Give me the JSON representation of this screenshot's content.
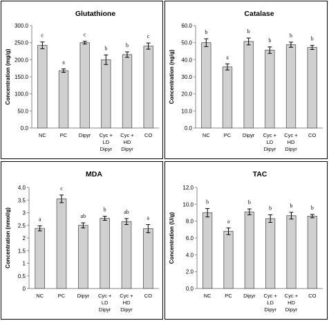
{
  "chart_data": [
    {
      "type": "bar",
      "title": "Glutathione",
      "ylabel": "Concentration (mg/g)",
      "xlabel": "",
      "categories": [
        [
          "NC"
        ],
        [
          "PC"
        ],
        [
          "Dipyr"
        ],
        [
          "Cyc +",
          "LD",
          "Dipyr"
        ],
        [
          "Cyc +",
          "HD",
          "Dipyr"
        ],
        [
          "CO"
        ]
      ],
      "values": [
        242,
        168,
        250,
        200,
        215,
        240
      ],
      "errors": [
        10,
        5,
        4,
        14,
        8,
        9
      ],
      "significance": [
        "c",
        "a",
        "c",
        "b",
        "b",
        "c"
      ],
      "ylim": [
        0,
        300
      ],
      "yticks": [
        "0.0",
        "50.0",
        "100.0",
        "150.0",
        "200.0",
        "250.0",
        "300.0"
      ],
      "bar_color": "#d0d0d0",
      "grid": false
    },
    {
      "type": "bar",
      "title": "Catalase",
      "ylabel": "Concentration (ng/g)",
      "xlabel": "",
      "categories": [
        [
          "NC"
        ],
        [
          "PC"
        ],
        [
          "Dipyr"
        ],
        [
          "Cyc +",
          "LD",
          "Dipyr"
        ],
        [
          "Cyc +",
          "HD",
          "Dipyr"
        ],
        [
          "CO"
        ]
      ],
      "values": [
        50,
        35.8,
        50.7,
        45.6,
        48.8,
        47.2
      ],
      "errors": [
        2.3,
        1.8,
        2.0,
        1.9,
        1.5,
        1.2
      ],
      "significance": [
        "b",
        "a",
        "b",
        "b",
        "b",
        "b"
      ],
      "ylim": [
        0,
        60
      ],
      "yticks": [
        "0.0",
        "10.0",
        "20.0",
        "30.0",
        "40.0",
        "50.0",
        "60.0"
      ],
      "bar_color": "#d0d0d0",
      "grid": false
    },
    {
      "type": "bar",
      "title": "MDA",
      "ylabel": "Concentration (nmol/g)",
      "xlabel": "",
      "categories": [
        [
          "NC"
        ],
        [
          "PC"
        ],
        [
          "Dipyr"
        ],
        [
          "Cyc +",
          "LD",
          "Dipyr"
        ],
        [
          "Cyc +",
          "HD",
          "Dipyr"
        ],
        [
          "CO"
        ]
      ],
      "values": [
        2.38,
        3.55,
        2.5,
        2.78,
        2.65,
        2.37
      ],
      "errors": [
        0.1,
        0.15,
        0.1,
        0.08,
        0.12,
        0.16
      ],
      "significance": [
        "a",
        "c",
        "ab",
        "b",
        "ab",
        "a"
      ],
      "ylim": [
        0,
        4
      ],
      "yticks": [
        "0",
        "0.5",
        "1",
        "1.5",
        "2",
        "2.5",
        "3",
        "3.5",
        "4.0"
      ],
      "bar_color": "#d0d0d0",
      "grid": false
    },
    {
      "type": "bar",
      "title": "TAC",
      "ylabel": "Concentration (U/g)",
      "xlabel": "",
      "categories": [
        [
          "NC"
        ],
        [
          "PC"
        ],
        [
          "Dipyr"
        ],
        [
          "Cyc +",
          "LD",
          "Dipyr"
        ],
        [
          "Cyc +",
          "HD",
          "Dipyr"
        ],
        [
          "CO"
        ]
      ],
      "values": [
        9.0,
        6.8,
        9.1,
        8.3,
        8.65,
        8.6
      ],
      "errors": [
        0.5,
        0.4,
        0.35,
        0.45,
        0.4,
        0.2
      ],
      "significance": [
        "b",
        "a",
        "b",
        "b",
        "b",
        "b"
      ],
      "ylim": [
        0,
        12
      ],
      "yticks": [
        "0.0",
        "2.0",
        "4.0",
        "6.0",
        "8.0",
        "10.0",
        "12.0"
      ],
      "bar_color": "#d0d0d0",
      "grid": false
    }
  ]
}
